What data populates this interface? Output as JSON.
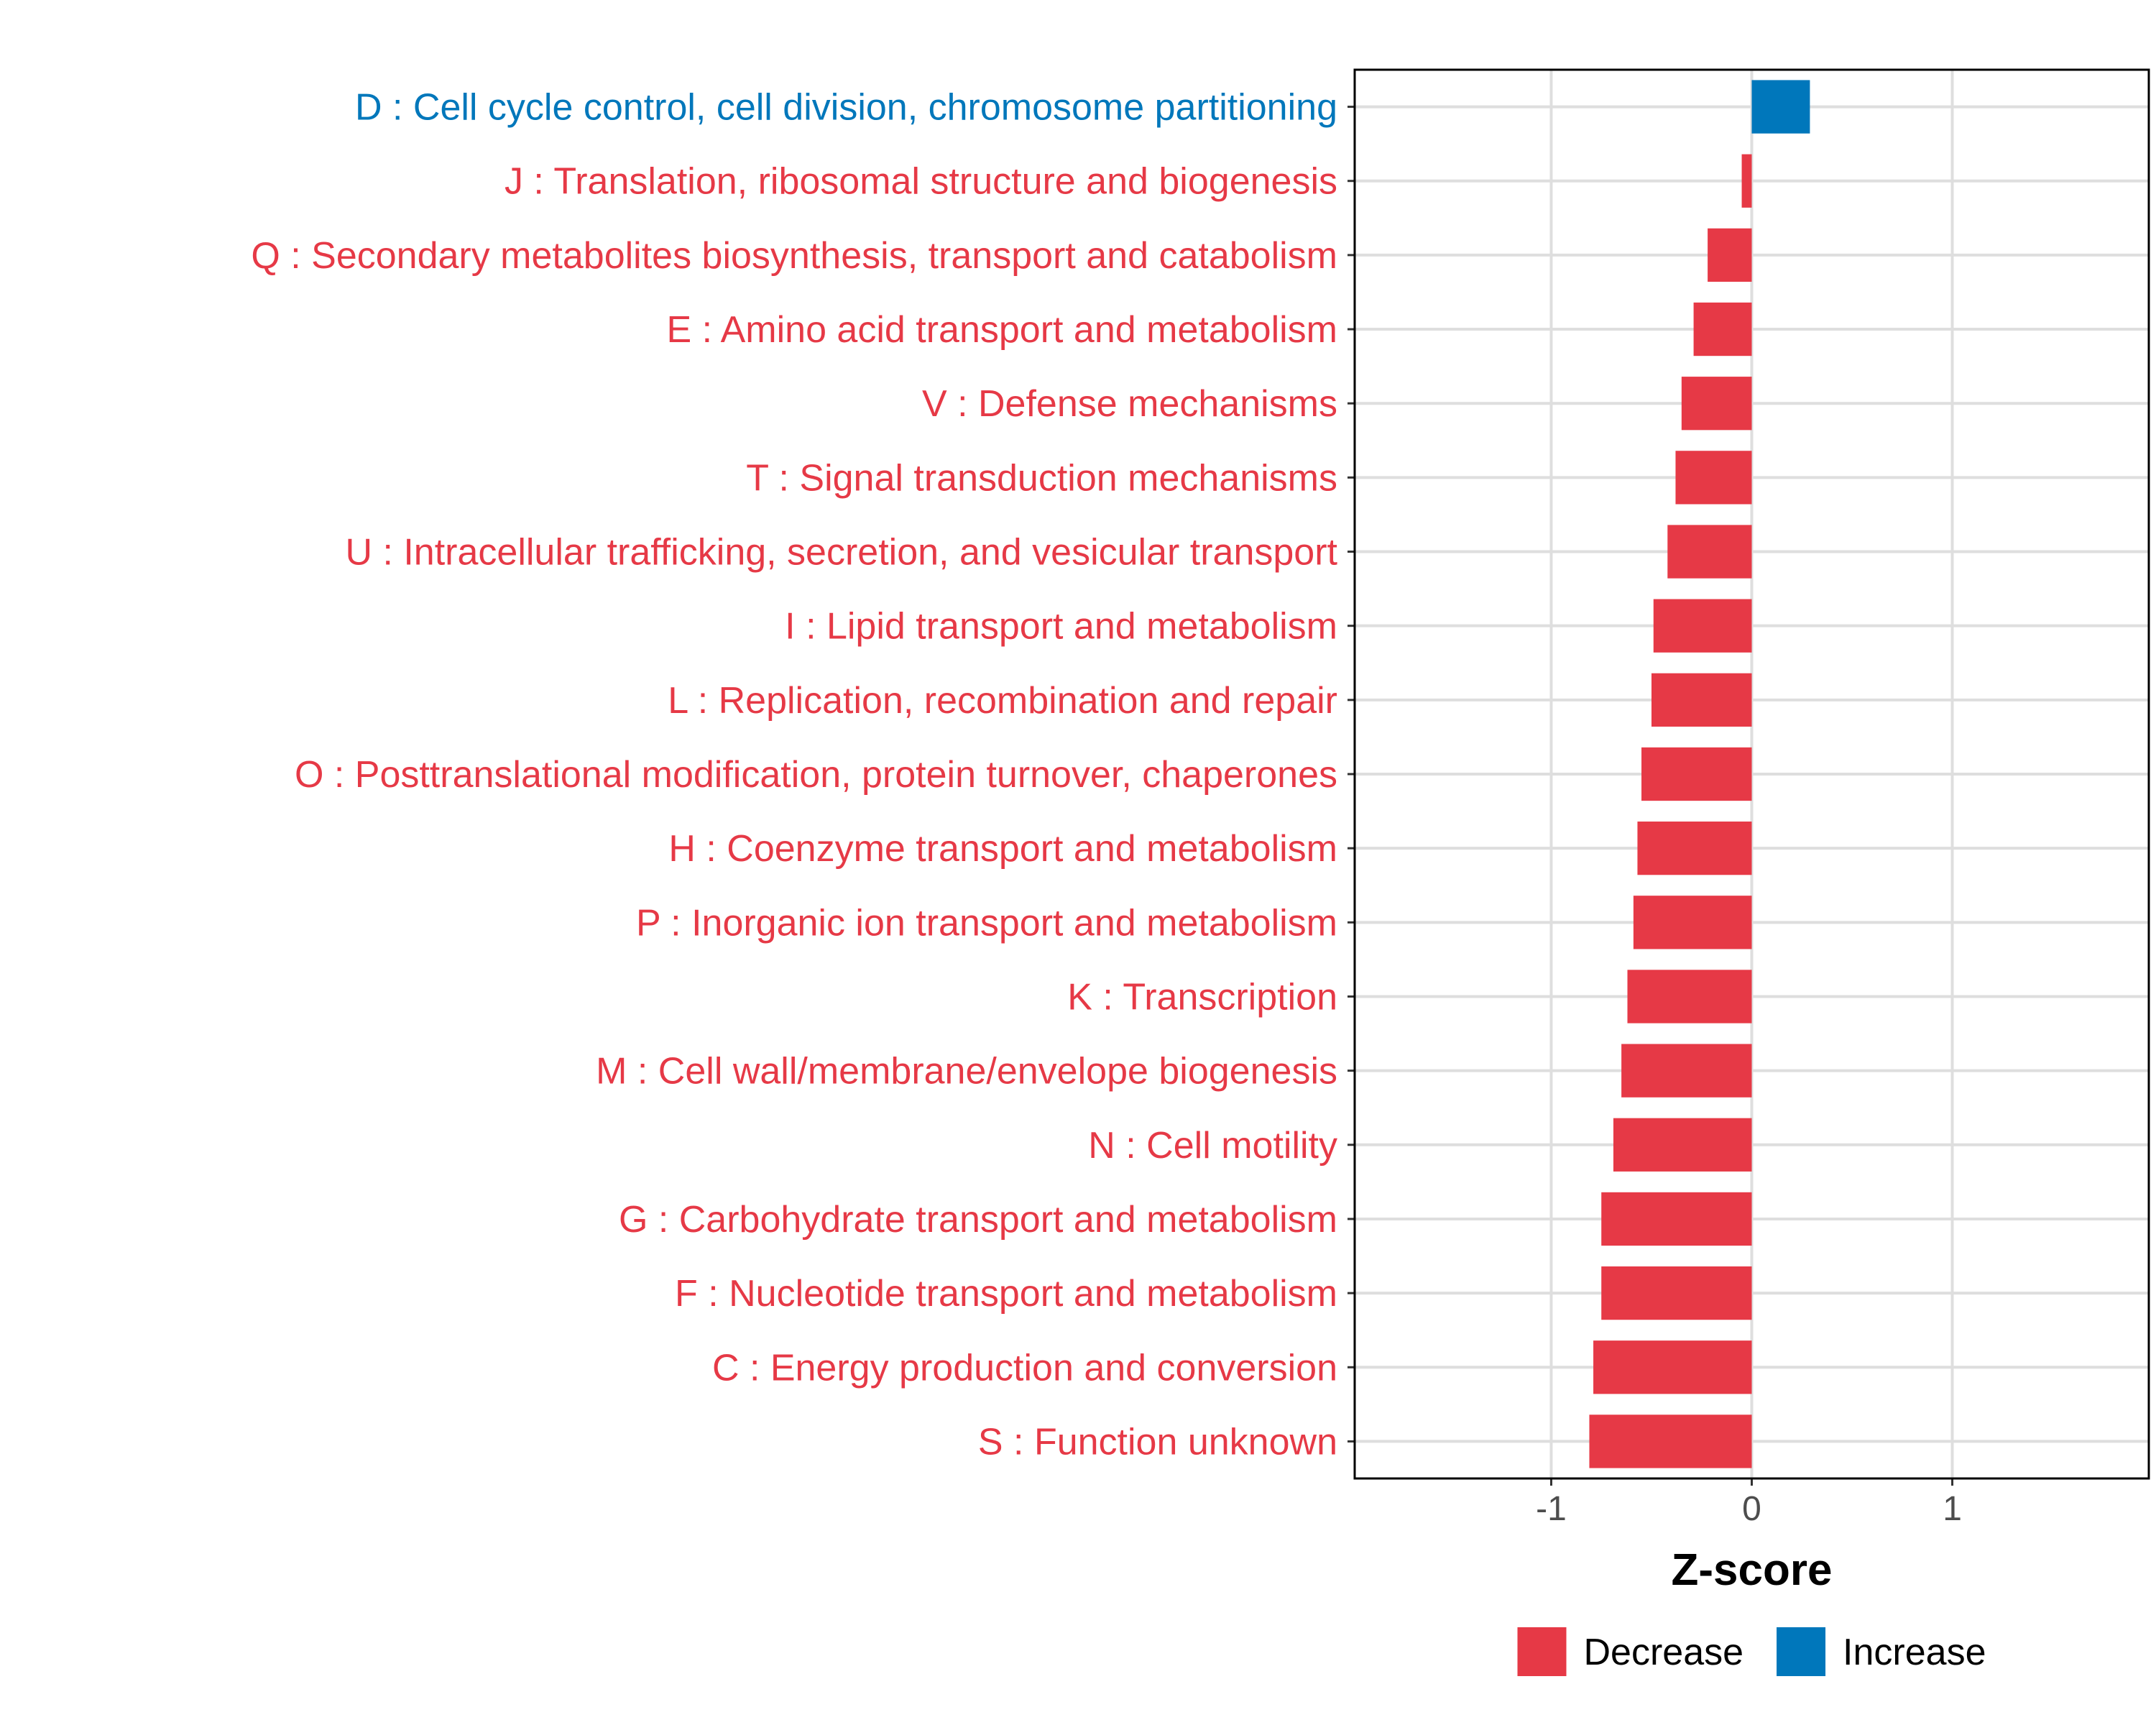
{
  "chart_data": {
    "type": "bar",
    "orientation": "horizontal",
    "categories": [
      "D : Cell cycle control, cell division, chromosome partitioning",
      "J : Translation, ribosomal structure and biogenesis",
      "Q : Secondary metabolites biosynthesis, transport and catabolism",
      "E : Amino acid transport and metabolism",
      "V : Defense mechanisms",
      "T : Signal transduction mechanisms",
      "U : Intracellular trafficking, secretion, and vesicular transport",
      "I : Lipid transport and metabolism",
      "L : Replication, recombination and repair",
      "O : Posttranslational modification, protein turnover, chaperones",
      "H : Coenzyme transport and metabolism",
      "P : Inorganic ion transport and metabolism",
      "K : Transcription",
      "M : Cell wall/membrane/envelope biogenesis",
      "N : Cell motility",
      "G : Carbohydrate transport and metabolism",
      "F : Nucleotide transport and metabolism",
      "C : Energy production and conversion",
      "S : Function unknown"
    ],
    "values": [
      0.29,
      -0.05,
      -0.22,
      -0.29,
      -0.35,
      -0.38,
      -0.42,
      -0.49,
      -0.5,
      -0.55,
      -0.57,
      -0.59,
      -0.62,
      -0.65,
      -0.69,
      -0.75,
      -0.75,
      -0.79,
      -0.81
    ],
    "groups": [
      "Increase",
      "Decrease",
      "Decrease",
      "Decrease",
      "Decrease",
      "Decrease",
      "Decrease",
      "Decrease",
      "Decrease",
      "Decrease",
      "Decrease",
      "Decrease",
      "Decrease",
      "Decrease",
      "Decrease",
      "Decrease",
      "Decrease",
      "Decrease",
      "Decrease"
    ],
    "xlabel": "Z-score",
    "ylabel": "",
    "xlim": [
      -1.98,
      1.98
    ],
    "xticks": [
      -1,
      0,
      1
    ],
    "xtick_labels": [
      "-1",
      "0",
      "1"
    ],
    "grid": true,
    "legend": {
      "placement": "bottom",
      "entries": [
        {
          "name": "Decrease",
          "color": "#e63946"
        },
        {
          "name": "Increase",
          "color": "#0077bb"
        }
      ]
    },
    "colors": {
      "Decrease": "#e63946",
      "Increase": "#0077bb"
    }
  }
}
